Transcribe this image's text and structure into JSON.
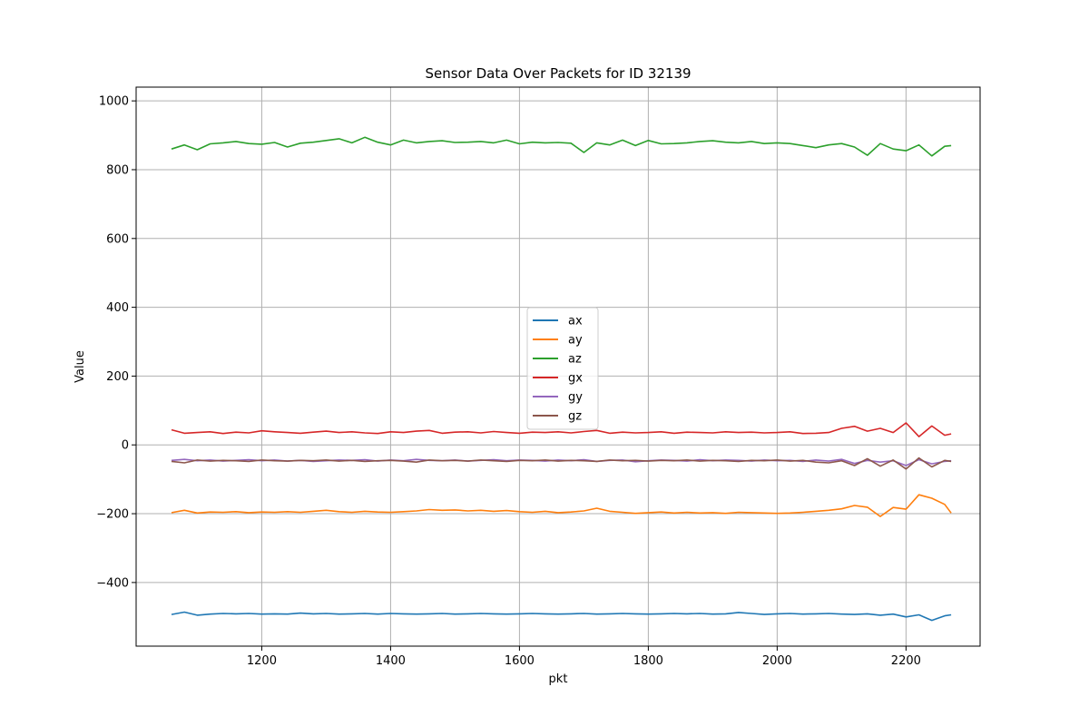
{
  "chart_data": {
    "type": "line",
    "title": "Sensor Data Over Packets for ID 32139",
    "xlabel": "pkt",
    "ylabel": "Value",
    "xlim": [
      1005,
      2315
    ],
    "ylim": [
      -585,
      1040
    ],
    "xticks": [
      1200,
      1400,
      1600,
      1800,
      2000,
      2200
    ],
    "yticks": [
      -400,
      -200,
      0,
      200,
      400,
      600,
      800,
      1000
    ],
    "grid": true,
    "legend_position": "center",
    "x": [
      1060,
      1080,
      1100,
      1120,
      1140,
      1160,
      1180,
      1200,
      1220,
      1240,
      1260,
      1280,
      1300,
      1320,
      1340,
      1360,
      1380,
      1400,
      1420,
      1440,
      1460,
      1480,
      1500,
      1520,
      1540,
      1560,
      1580,
      1600,
      1620,
      1640,
      1660,
      1680,
      1700,
      1720,
      1740,
      1760,
      1780,
      1800,
      1820,
      1840,
      1860,
      1880,
      1900,
      1920,
      1940,
      1960,
      1980,
      2000,
      2020,
      2040,
      2060,
      2080,
      2100,
      2120,
      2140,
      2160,
      2180,
      2200,
      2220,
      2240,
      2260,
      2270
    ],
    "series": [
      {
        "name": "ax",
        "color": "#1f77b4",
        "values": [
          -493,
          -486,
          -495,
          -492,
          -490,
          -491,
          -490,
          -492,
          -491,
          -492,
          -489,
          -491,
          -490,
          -492,
          -491,
          -490,
          -492,
          -490,
          -491,
          -492,
          -491,
          -490,
          -492,
          -491,
          -490,
          -491,
          -492,
          -491,
          -490,
          -491,
          -492,
          -491,
          -490,
          -492,
          -491,
          -490,
          -491,
          -492,
          -491,
          -490,
          -491,
          -490,
          -492,
          -491,
          -487,
          -490,
          -493,
          -491,
          -490,
          -492,
          -491,
          -490,
          -492,
          -493,
          -491,
          -495,
          -492,
          -500,
          -494,
          -510,
          -497,
          -494
        ]
      },
      {
        "name": "ay",
        "color": "#ff7f0e",
        "values": [
          -197,
          -190,
          -198,
          -195,
          -196,
          -194,
          -197,
          -195,
          -196,
          -194,
          -196,
          -193,
          -190,
          -194,
          -196,
          -193,
          -195,
          -196,
          -194,
          -192,
          -188,
          -190,
          -189,
          -192,
          -190,
          -193,
          -191,
          -194,
          -196,
          -193,
          -197,
          -195,
          -192,
          -184,
          -193,
          -196,
          -199,
          -197,
          -195,
          -198,
          -196,
          -198,
          -197,
          -199,
          -196,
          -197,
          -198,
          -199,
          -198,
          -196,
          -193,
          -190,
          -186,
          -176,
          -181,
          -208,
          -182,
          -187,
          -145,
          -155,
          -173,
          -198
        ]
      },
      {
        "name": "az",
        "color": "#2ca02c",
        "values": [
          860,
          872,
          858,
          875,
          878,
          882,
          876,
          874,
          879,
          866,
          877,
          880,
          885,
          890,
          878,
          894,
          880,
          872,
          886,
          878,
          882,
          884,
          879,
          880,
          882,
          878,
          886,
          875,
          880,
          878,
          879,
          877,
          850,
          878,
          872,
          886,
          870,
          885,
          875,
          876,
          878,
          882,
          884,
          880,
          878,
          882,
          876,
          878,
          876,
          870,
          864,
          872,
          876,
          866,
          842,
          876,
          860,
          855,
          872,
          840,
          868,
          870
        ]
      },
      {
        "name": "gx",
        "color": "#d62728",
        "values": [
          44,
          34,
          36,
          38,
          33,
          37,
          35,
          41,
          38,
          36,
          34,
          37,
          40,
          36,
          38,
          35,
          33,
          38,
          36,
          40,
          42,
          34,
          37,
          38,
          35,
          39,
          36,
          34,
          37,
          36,
          38,
          35,
          39,
          42,
          34,
          37,
          35,
          36,
          38,
          34,
          37,
          36,
          35,
          38,
          36,
          37,
          35,
          36,
          38,
          33,
          34,
          36,
          48,
          54,
          40,
          48,
          36,
          64,
          24,
          55,
          28,
          32
        ]
      },
      {
        "name": "gy",
        "color": "#9467bd",
        "values": [
          -45,
          -42,
          -46,
          -44,
          -47,
          -45,
          -43,
          -46,
          -44,
          -47,
          -45,
          -48,
          -46,
          -44,
          -45,
          -43,
          -47,
          -44,
          -46,
          -42,
          -45,
          -46,
          -44,
          -47,
          -45,
          -43,
          -46,
          -44,
          -45,
          -47,
          -44,
          -46,
          -43,
          -48,
          -45,
          -44,
          -49,
          -46,
          -44,
          -45,
          -47,
          -43,
          -46,
          -44,
          -45,
          -47,
          -44,
          -46,
          -45,
          -48,
          -44,
          -47,
          -42,
          -54,
          -45,
          -50,
          -46,
          -60,
          -43,
          -55,
          -48,
          -46
        ]
      },
      {
        "name": "gz",
        "color": "#8c564b",
        "values": [
          -48,
          -52,
          -44,
          -47,
          -45,
          -46,
          -48,
          -44,
          -46,
          -47,
          -45,
          -46,
          -44,
          -47,
          -45,
          -48,
          -46,
          -45,
          -47,
          -50,
          -44,
          -46,
          -45,
          -47,
          -44,
          -46,
          -48,
          -45,
          -46,
          -44,
          -47,
          -45,
          -46,
          -48,
          -44,
          -46,
          -45,
          -47,
          -45,
          -46,
          -44,
          -47,
          -45,
          -46,
          -48,
          -45,
          -46,
          -44,
          -47,
          -45,
          -50,
          -52,
          -46,
          -60,
          -40,
          -62,
          -44,
          -70,
          -38,
          -64,
          -45,
          -48
        ]
      }
    ]
  }
}
